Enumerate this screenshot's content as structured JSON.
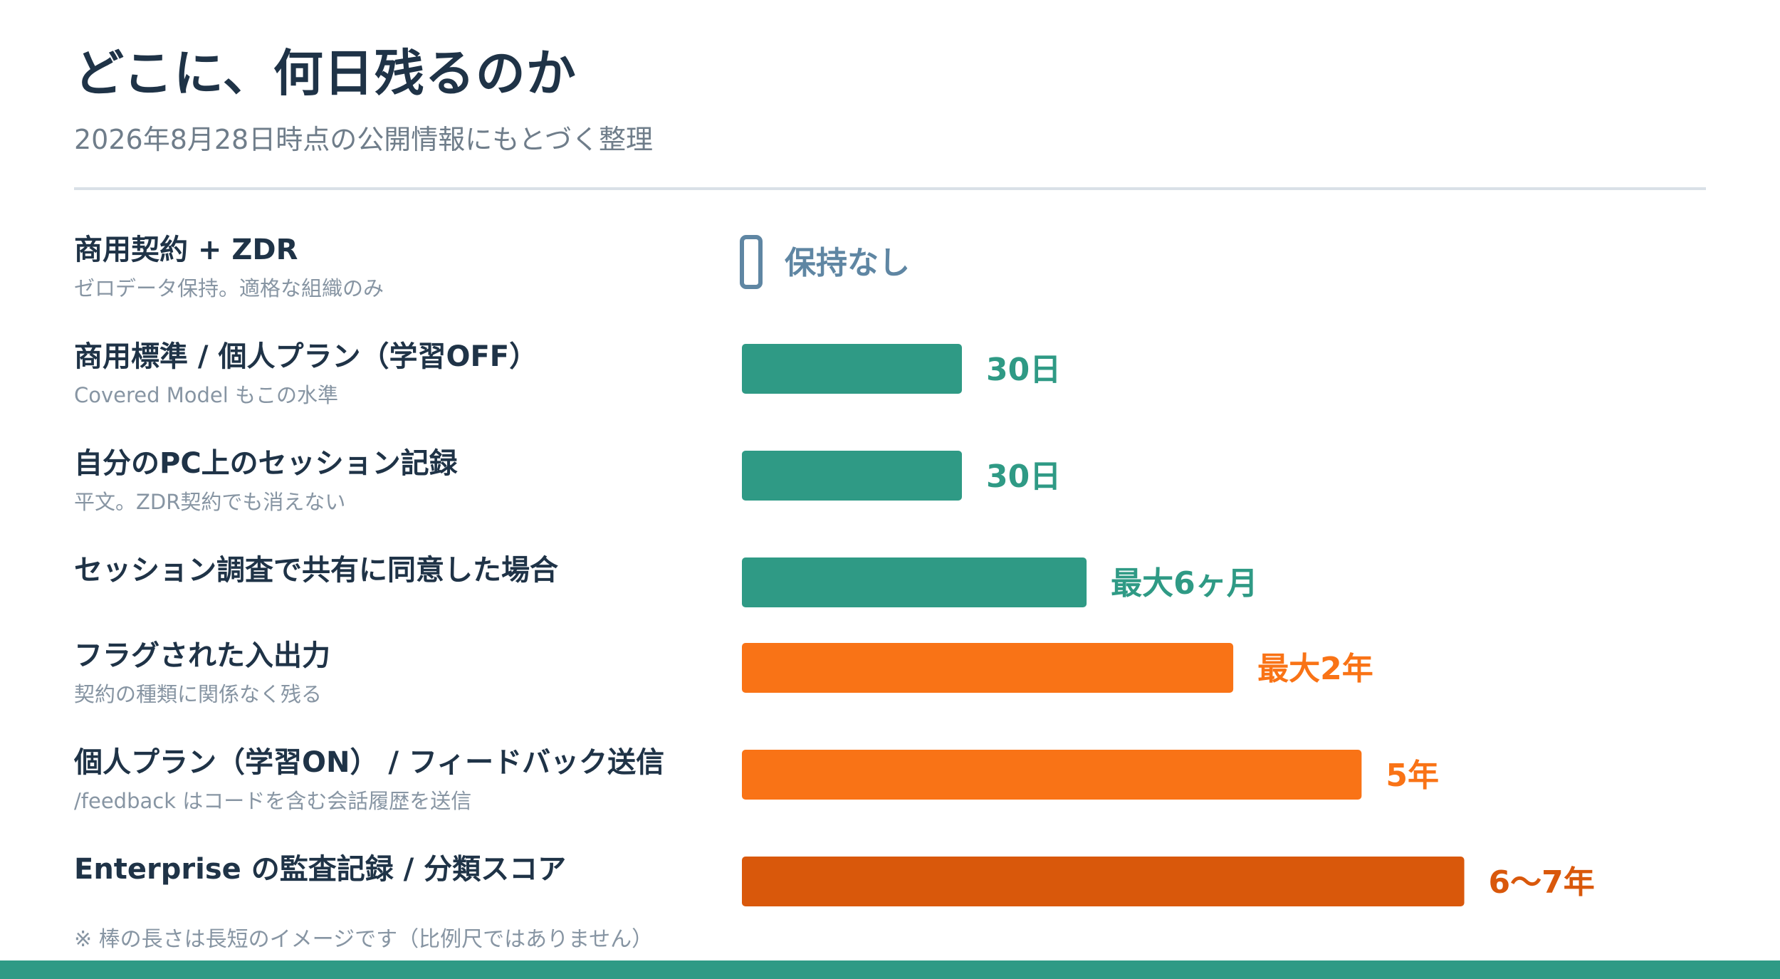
{
  "page": {
    "title": "どこに、何日残るのか",
    "subtitle": "2026年8月28日時点の公開情報にもとづく整理",
    "footnote": "※ 棒の長さは長短のイメージです（比例尺ではありません）"
  },
  "colors": {
    "title": "#1f3347",
    "none_outline": "#5f86a3",
    "short": "#2f9a85",
    "long": "#f97316",
    "longest": "#d9580b",
    "band": "#2f9a85"
  },
  "chart_data": {
    "type": "bar",
    "orientation": "horizontal",
    "categories": [
      "商用契約 + ZDR",
      "商用標準 / 個人プラン（学習OFF）",
      "自分のPC上のセッション記録",
      "セッション調査で共有に同意した場合",
      "フラグされた入出力",
      "個人プラン（学習ON） / フィードバック送信",
      "Enterprise の監査記録 / 分類スコア"
    ],
    "notes": [
      "ゼロデータ保持。適格な組織のみ",
      "Covered Model もこの水準",
      "平文。ZDR契約でも消えない",
      "",
      "契約の種類に関係なく残る",
      "/feedback はコードを含む会話履歴を送信",
      ""
    ],
    "value_labels": [
      "保持なし",
      "30日",
      "30日",
      "最大6ヶ月",
      "最大2年",
      "5年",
      "6〜7年"
    ],
    "bar_length_relative": [
      0,
      0.3,
      0.3,
      0.47,
      0.67,
      0.845,
      0.985
    ],
    "color_groups": [
      "none",
      "short",
      "short",
      "short",
      "long",
      "long",
      "longest"
    ],
    "proportional_scale": false
  }
}
